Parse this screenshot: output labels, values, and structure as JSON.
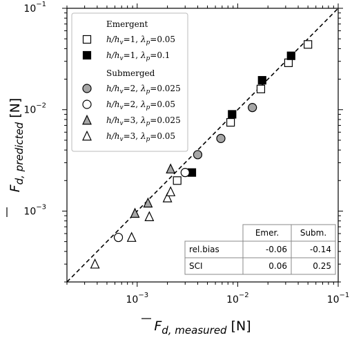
{
  "chart_data": {
    "type": "scatter",
    "xlabel": {
      "base": "F",
      "sub": "d, measured",
      "unit": "[N]"
    },
    "ylabel": {
      "base": "F",
      "sub": "d, predicted",
      "unit": "[N]"
    },
    "xscale": "log",
    "yscale": "log",
    "xlim": [
      0.0002,
      0.1
    ],
    "ylim": [
      0.0002,
      0.1
    ],
    "grid": false,
    "legend_position": "top-left",
    "xticks": [
      {
        "value": 0.001,
        "base": "10",
        "exp": "−3"
      },
      {
        "value": 0.01,
        "base": "10",
        "exp": "−2"
      },
      {
        "value": 0.1,
        "base": "10",
        "exp": "−1"
      }
    ],
    "yticks": [
      {
        "value": 0.001,
        "base": "10",
        "exp": "−3"
      },
      {
        "value": 0.01,
        "base": "10",
        "exp": "−2"
      },
      {
        "value": 0.1,
        "base": "10",
        "exp": "−1"
      }
    ],
    "reference_line": {
      "style": "dashed",
      "from": [
        0.0002,
        0.0002
      ],
      "to": [
        0.1,
        0.1
      ]
    },
    "legend_groups": [
      {
        "heading": "Emergent",
        "series_indices": [
          0,
          1
        ]
      },
      {
        "heading": "Submerged",
        "series_indices": [
          2,
          3,
          4,
          5
        ]
      }
    ],
    "series": [
      {
        "label_parts": {
          "ratio": "h/h",
          "ratio_sub": "v",
          "ratio_val": "=1, ",
          "lam_sub": "p",
          "lam_val": "=0.05"
        },
        "marker": "square",
        "fill": "#ffffff",
        "stroke": "#000000",
        "points": [
          [
            0.0025,
            0.002
          ],
          [
            0.0085,
            0.0075
          ],
          [
            0.017,
            0.016
          ],
          [
            0.032,
            0.029
          ],
          [
            0.05,
            0.044
          ]
        ]
      },
      {
        "label_parts": {
          "ratio": "h/h",
          "ratio_sub": "v",
          "ratio_val": "=1, ",
          "lam_sub": "p",
          "lam_val": "=0.1"
        },
        "marker": "square",
        "fill": "#000000",
        "stroke": "#000000",
        "points": [
          [
            0.0035,
            0.0024
          ],
          [
            0.0088,
            0.009
          ],
          [
            0.0175,
            0.0195
          ],
          [
            0.034,
            0.034
          ]
        ]
      },
      {
        "label_parts": {
          "ratio": "h/h",
          "ratio_sub": "v",
          "ratio_val": "=2, ",
          "lam_sub": "p",
          "lam_val": "=0.025"
        },
        "marker": "circle",
        "fill": "#a6a6a6",
        "stroke": "#000000",
        "points": [
          [
            0.004,
            0.0036
          ],
          [
            0.0068,
            0.0052
          ],
          [
            0.014,
            0.0105
          ]
        ]
      },
      {
        "label_parts": {
          "ratio": "h/h",
          "ratio_sub": "v",
          "ratio_val": "=2, ",
          "lam_sub": "p",
          "lam_val": "=0.05"
        },
        "marker": "circle",
        "fill": "#ffffff",
        "stroke": "#000000",
        "points": [
          [
            0.00065,
            0.00055
          ],
          [
            0.003,
            0.0024
          ]
        ]
      },
      {
        "label_parts": {
          "ratio": "h/h",
          "ratio_sub": "v",
          "ratio_val": "=3, ",
          "lam_sub": "p",
          "lam_val": "=0.025"
        },
        "marker": "triangle",
        "fill": "#a6a6a6",
        "stroke": "#000000",
        "points": [
          [
            0.00095,
            0.00095
          ],
          [
            0.00128,
            0.0012
          ],
          [
            0.00215,
            0.0026
          ]
        ]
      },
      {
        "label_parts": {
          "ratio": "h/h",
          "ratio_sub": "v",
          "ratio_val": "=3, ",
          "lam_sub": "p",
          "lam_val": "=0.05"
        },
        "marker": "triangle",
        "fill": "#ffffff",
        "stroke": "#000000",
        "points": [
          [
            0.00038,
            0.0003
          ],
          [
            0.00088,
            0.00055
          ],
          [
            0.00132,
            0.00088
          ],
          [
            0.002,
            0.00135
          ],
          [
            0.00215,
            0.00155
          ]
        ]
      }
    ],
    "stats_table": {
      "headers": [
        "",
        "Emer.",
        "Subm."
      ],
      "rows": [
        [
          "rel.bias",
          "-0.06",
          "-0.14"
        ],
        [
          "SCI",
          "0.06",
          "0.25"
        ]
      ]
    }
  }
}
